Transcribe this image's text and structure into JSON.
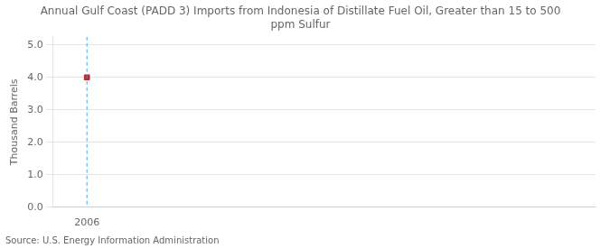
{
  "chart_data": {
    "type": "scatter",
    "title": "Annual Gulf Coast (PADD 3) Imports from Indonesia of Distillate Fuel Oil, Greater than 15 to 500\nppm Sulfur",
    "ylabel": "Thousand Barrels",
    "annotation": "Source: U.S. Energy Information Administration",
    "x": [
      2006
    ],
    "series": [
      {
        "values": [
          4.0
        ],
        "color": "#cc2222",
        "marker": "square"
      }
    ],
    "vlines": [
      2006
    ],
    "xlim": [
      2005.4,
      2015.0
    ],
    "xticks": [
      2006
    ],
    "ylim": [
      0.0,
      5.25
    ],
    "yticks": [
      {
        "value": 0.0,
        "label": "0.0"
      },
      {
        "value": 1.0,
        "label": "1.0"
      },
      {
        "value": 2.0,
        "label": "2.0"
      },
      {
        "value": 3.0,
        "label": "3.0"
      },
      {
        "value": 4.0,
        "label": "4.0"
      },
      {
        "value": 5.0,
        "label": "5.0"
      }
    ],
    "grid": "y"
  }
}
